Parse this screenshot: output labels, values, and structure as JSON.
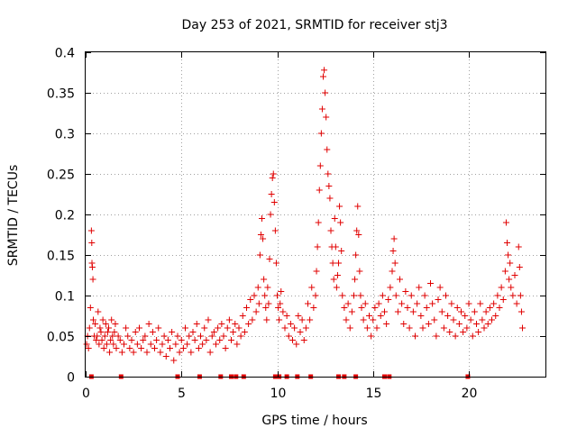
{
  "chart_data": {
    "type": "scatter",
    "title": "Day 253 of 2021, SRMTID for receiver stj3",
    "xlabel": "GPS time / hours",
    "ylabel": "SRMTID / TECUs",
    "xlim": [
      0,
      24
    ],
    "ylim": [
      0,
      0.4
    ],
    "x_ticks": [
      0,
      5,
      10,
      15,
      20
    ],
    "x_tick_labels": [
      "0",
      "5",
      "10",
      "15",
      "20"
    ],
    "y_ticks": [
      0,
      0.05,
      0.1,
      0.15,
      0.2,
      0.25,
      0.3,
      0.35,
      0.4
    ],
    "y_tick_labels": [
      "0",
      "0.05",
      "0.1",
      "0.15",
      "0.2",
      "0.25",
      "0.3",
      "0.35",
      "0.4"
    ],
    "grid": true,
    "marker": "plus",
    "color": "#e00000",
    "series": [
      {
        "name": "SRMTID",
        "points": [
          [
            0.05,
            0.04
          ],
          [
            0.1,
            0.05
          ],
          [
            0.15,
            0.035
          ],
          [
            0.2,
            0.06
          ],
          [
            0.25,
            0.085
          ],
          [
            0.3,
            0.18
          ],
          [
            0.32,
            0.165
          ],
          [
            0.33,
            0.14
          ],
          [
            0.35,
            0.135
          ],
          [
            0.38,
            0.12
          ],
          [
            0.4,
            0.07
          ],
          [
            0.45,
            0.05
          ],
          [
            0.5,
            0.065
          ],
          [
            0.55,
            0.045
          ],
          [
            0.6,
            0.05
          ],
          [
            0.65,
            0.08
          ],
          [
            0.7,
            0.04
          ],
          [
            0.75,
            0.06
          ],
          [
            0.8,
            0.055
          ],
          [
            0.85,
            0.045
          ],
          [
            0.9,
            0.07
          ],
          [
            0.95,
            0.035
          ],
          [
            1.0,
            0.05
          ],
          [
            1.05,
            0.065
          ],
          [
            1.1,
            0.04
          ],
          [
            1.15,
            0.055
          ],
          [
            1.2,
            0.06
          ],
          [
            1.25,
            0.03
          ],
          [
            1.3,
            0.045
          ],
          [
            1.35,
            0.07
          ],
          [
            1.4,
            0.05
          ],
          [
            1.45,
            0.04
          ],
          [
            1.5,
            0.055
          ],
          [
            1.55,
            0.065
          ],
          [
            1.6,
            0.035
          ],
          [
            1.7,
            0.05
          ],
          [
            1.8,
            0.045
          ],
          [
            1.9,
            0.03
          ],
          [
            2.0,
            0.04
          ],
          [
            2.1,
            0.06
          ],
          [
            2.2,
            0.05
          ],
          [
            2.3,
            0.035
          ],
          [
            2.4,
            0.045
          ],
          [
            2.5,
            0.03
          ],
          [
            2.6,
            0.055
          ],
          [
            2.7,
            0.04
          ],
          [
            2.8,
            0.06
          ],
          [
            2.9,
            0.035
          ],
          [
            3.0,
            0.045
          ],
          [
            3.1,
            0.05
          ],
          [
            3.2,
            0.03
          ],
          [
            3.3,
            0.065
          ],
          [
            3.4,
            0.04
          ],
          [
            3.5,
            0.055
          ],
          [
            3.6,
            0.035
          ],
          [
            3.7,
            0.045
          ],
          [
            3.8,
            0.06
          ],
          [
            3.9,
            0.03
          ],
          [
            4.0,
            0.04
          ],
          [
            4.1,
            0.05
          ],
          [
            4.2,
            0.025
          ],
          [
            4.3,
            0.045
          ],
          [
            4.4,
            0.035
          ],
          [
            4.5,
            0.055
          ],
          [
            4.6,
            0.02
          ],
          [
            4.7,
            0.04
          ],
          [
            4.8,
            0.05
          ],
          [
            4.9,
            0.03
          ],
          [
            5.0,
            0.045
          ],
          [
            5.1,
            0.035
          ],
          [
            5.2,
            0.06
          ],
          [
            5.3,
            0.04
          ],
          [
            5.4,
            0.05
          ],
          [
            5.5,
            0.03
          ],
          [
            5.6,
            0.055
          ],
          [
            5.7,
            0.045
          ],
          [
            5.8,
            0.065
          ],
          [
            5.9,
            0.035
          ],
          [
            6.0,
            0.05
          ],
          [
            6.1,
            0.04
          ],
          [
            6.2,
            0.06
          ],
          [
            6.3,
            0.045
          ],
          [
            6.4,
            0.07
          ],
          [
            6.5,
            0.03
          ],
          [
            6.6,
            0.05
          ],
          [
            6.7,
            0.055
          ],
          [
            6.8,
            0.04
          ],
          [
            6.9,
            0.06
          ],
          [
            7.0,
            0.045
          ],
          [
            7.1,
            0.065
          ],
          [
            7.2,
            0.05
          ],
          [
            7.3,
            0.035
          ],
          [
            7.4,
            0.06
          ],
          [
            7.5,
            0.07
          ],
          [
            7.6,
            0.045
          ],
          [
            7.7,
            0.055
          ],
          [
            7.8,
            0.065
          ],
          [
            7.9,
            0.04
          ],
          [
            8.0,
            0.06
          ],
          [
            8.1,
            0.05
          ],
          [
            8.2,
            0.075
          ],
          [
            8.3,
            0.055
          ],
          [
            8.4,
            0.085
          ],
          [
            8.5,
            0.065
          ],
          [
            8.6,
            0.095
          ],
          [
            8.7,
            0.07
          ],
          [
            8.8,
            0.1
          ],
          [
            8.9,
            0.08
          ],
          [
            9.0,
            0.11
          ],
          [
            9.05,
            0.09
          ],
          [
            9.1,
            0.15
          ],
          [
            9.15,
            0.175
          ],
          [
            9.2,
            0.195
          ],
          [
            9.25,
            0.17
          ],
          [
            9.3,
            0.12
          ],
          [
            9.35,
            0.1
          ],
          [
            9.4,
            0.085
          ],
          [
            9.45,
            0.07
          ],
          [
            9.5,
            0.11
          ],
          [
            9.55,
            0.09
          ],
          [
            9.6,
            0.145
          ],
          [
            9.65,
            0.2
          ],
          [
            9.7,
            0.225
          ],
          [
            9.75,
            0.245
          ],
          [
            9.8,
            0.25
          ],
          [
            9.85,
            0.215
          ],
          [
            9.9,
            0.18
          ],
          [
            9.95,
            0.14
          ],
          [
            10.0,
            0.1
          ],
          [
            10.05,
            0.085
          ],
          [
            10.1,
            0.07
          ],
          [
            10.15,
            0.09
          ],
          [
            10.2,
            0.105
          ],
          [
            10.3,
            0.08
          ],
          [
            10.4,
            0.06
          ],
          [
            10.5,
            0.075
          ],
          [
            10.6,
            0.05
          ],
          [
            10.7,
            0.065
          ],
          [
            10.8,
            0.045
          ],
          [
            10.9,
            0.06
          ],
          [
            11.0,
            0.04
          ],
          [
            11.1,
            0.075
          ],
          [
            11.2,
            0.055
          ],
          [
            11.3,
            0.07
          ],
          [
            11.4,
            0.045
          ],
          [
            11.5,
            0.06
          ],
          [
            11.6,
            0.09
          ],
          [
            11.7,
            0.07
          ],
          [
            11.8,
            0.11
          ],
          [
            11.9,
            0.085
          ],
          [
            12.0,
            0.1
          ],
          [
            12.05,
            0.13
          ],
          [
            12.1,
            0.16
          ],
          [
            12.15,
            0.19
          ],
          [
            12.2,
            0.23
          ],
          [
            12.25,
            0.26
          ],
          [
            12.3,
            0.3
          ],
          [
            12.35,
            0.33
          ],
          [
            12.4,
            0.37
          ],
          [
            12.45,
            0.378
          ],
          [
            12.5,
            0.35
          ],
          [
            12.55,
            0.32
          ],
          [
            12.6,
            0.28
          ],
          [
            12.65,
            0.25
          ],
          [
            12.7,
            0.235
          ],
          [
            12.75,
            0.22
          ],
          [
            12.8,
            0.18
          ],
          [
            12.85,
            0.16
          ],
          [
            12.9,
            0.14
          ],
          [
            12.95,
            0.12
          ],
          [
            13.0,
            0.195
          ],
          [
            13.05,
            0.16
          ],
          [
            13.1,
            0.11
          ],
          [
            13.15,
            0.125
          ],
          [
            13.2,
            0.14
          ],
          [
            13.25,
            0.21
          ],
          [
            13.3,
            0.19
          ],
          [
            13.35,
            0.155
          ],
          [
            13.4,
            0.1
          ],
          [
            13.5,
            0.085
          ],
          [
            13.6,
            0.07
          ],
          [
            13.7,
            0.09
          ],
          [
            13.8,
            0.06
          ],
          [
            13.9,
            0.08
          ],
          [
            14.0,
            0.1
          ],
          [
            14.05,
            0.12
          ],
          [
            14.1,
            0.15
          ],
          [
            14.15,
            0.18
          ],
          [
            14.2,
            0.21
          ],
          [
            14.25,
            0.175
          ],
          [
            14.3,
            0.13
          ],
          [
            14.35,
            0.1
          ],
          [
            14.4,
            0.085
          ],
          [
            14.5,
            0.07
          ],
          [
            14.6,
            0.09
          ],
          [
            14.7,
            0.06
          ],
          [
            14.8,
            0.075
          ],
          [
            14.9,
            0.05
          ],
          [
            15.0,
            0.07
          ],
          [
            15.1,
            0.085
          ],
          [
            15.2,
            0.06
          ],
          [
            15.3,
            0.09
          ],
          [
            15.4,
            0.075
          ],
          [
            15.5,
            0.1
          ],
          [
            15.6,
            0.08
          ],
          [
            15.7,
            0.065
          ],
          [
            15.8,
            0.095
          ],
          [
            15.9,
            0.11
          ],
          [
            16.0,
            0.13
          ],
          [
            16.05,
            0.155
          ],
          [
            16.1,
            0.17
          ],
          [
            16.15,
            0.14
          ],
          [
            16.2,
            0.1
          ],
          [
            16.3,
            0.08
          ],
          [
            16.4,
            0.12
          ],
          [
            16.5,
            0.09
          ],
          [
            16.6,
            0.065
          ],
          [
            16.7,
            0.105
          ],
          [
            16.8,
            0.085
          ],
          [
            16.9,
            0.06
          ],
          [
            17.0,
            0.1
          ],
          [
            17.1,
            0.08
          ],
          [
            17.2,
            0.05
          ],
          [
            17.3,
            0.09
          ],
          [
            17.4,
            0.11
          ],
          [
            17.5,
            0.075
          ],
          [
            17.6,
            0.06
          ],
          [
            17.7,
            0.1
          ],
          [
            17.8,
            0.085
          ],
          [
            17.9,
            0.065
          ],
          [
            18.0,
            0.115
          ],
          [
            18.1,
            0.09
          ],
          [
            18.2,
            0.07
          ],
          [
            18.3,
            0.05
          ],
          [
            18.4,
            0.095
          ],
          [
            18.5,
            0.11
          ],
          [
            18.6,
            0.08
          ],
          [
            18.7,
            0.06
          ],
          [
            18.8,
            0.1
          ],
          [
            18.9,
            0.075
          ],
          [
            19.0,
            0.055
          ],
          [
            19.1,
            0.09
          ],
          [
            19.2,
            0.07
          ],
          [
            19.3,
            0.05
          ],
          [
            19.4,
            0.085
          ],
          [
            19.5,
            0.065
          ],
          [
            19.6,
            0.08
          ],
          [
            19.7,
            0.055
          ],
          [
            19.8,
            0.075
          ],
          [
            19.9,
            0.06
          ],
          [
            20.0,
            0.09
          ],
          [
            20.1,
            0.07
          ],
          [
            20.2,
            0.05
          ],
          [
            20.3,
            0.08
          ],
          [
            20.4,
            0.065
          ],
          [
            20.5,
            0.055
          ],
          [
            20.6,
            0.09
          ],
          [
            20.7,
            0.07
          ],
          [
            20.8,
            0.06
          ],
          [
            20.9,
            0.08
          ],
          [
            21.0,
            0.065
          ],
          [
            21.1,
            0.085
          ],
          [
            21.2,
            0.07
          ],
          [
            21.3,
            0.09
          ],
          [
            21.4,
            0.075
          ],
          [
            21.5,
            0.1
          ],
          [
            21.6,
            0.085
          ],
          [
            21.7,
            0.11
          ],
          [
            21.8,
            0.095
          ],
          [
            21.9,
            0.13
          ],
          [
            21.95,
            0.19
          ],
          [
            22.0,
            0.165
          ],
          [
            22.05,
            0.15
          ],
          [
            22.1,
            0.12
          ],
          [
            22.15,
            0.14
          ],
          [
            22.2,
            0.11
          ],
          [
            22.3,
            0.1
          ],
          [
            22.4,
            0.125
          ],
          [
            22.5,
            0.09
          ],
          [
            22.6,
            0.16
          ],
          [
            22.65,
            0.135
          ],
          [
            22.7,
            0.1
          ],
          [
            22.75,
            0.08
          ],
          [
            22.8,
            0.06
          ]
        ]
      }
    ],
    "markers_on_axis": [
      0.3,
      1.85,
      4.8,
      5.95,
      7.05,
      7.6,
      7.85,
      8.25,
      9.9,
      10.1,
      10.5,
      11.05,
      11.75,
      13.2,
      13.5,
      14.1,
      15.6,
      15.85,
      19.95
    ]
  }
}
